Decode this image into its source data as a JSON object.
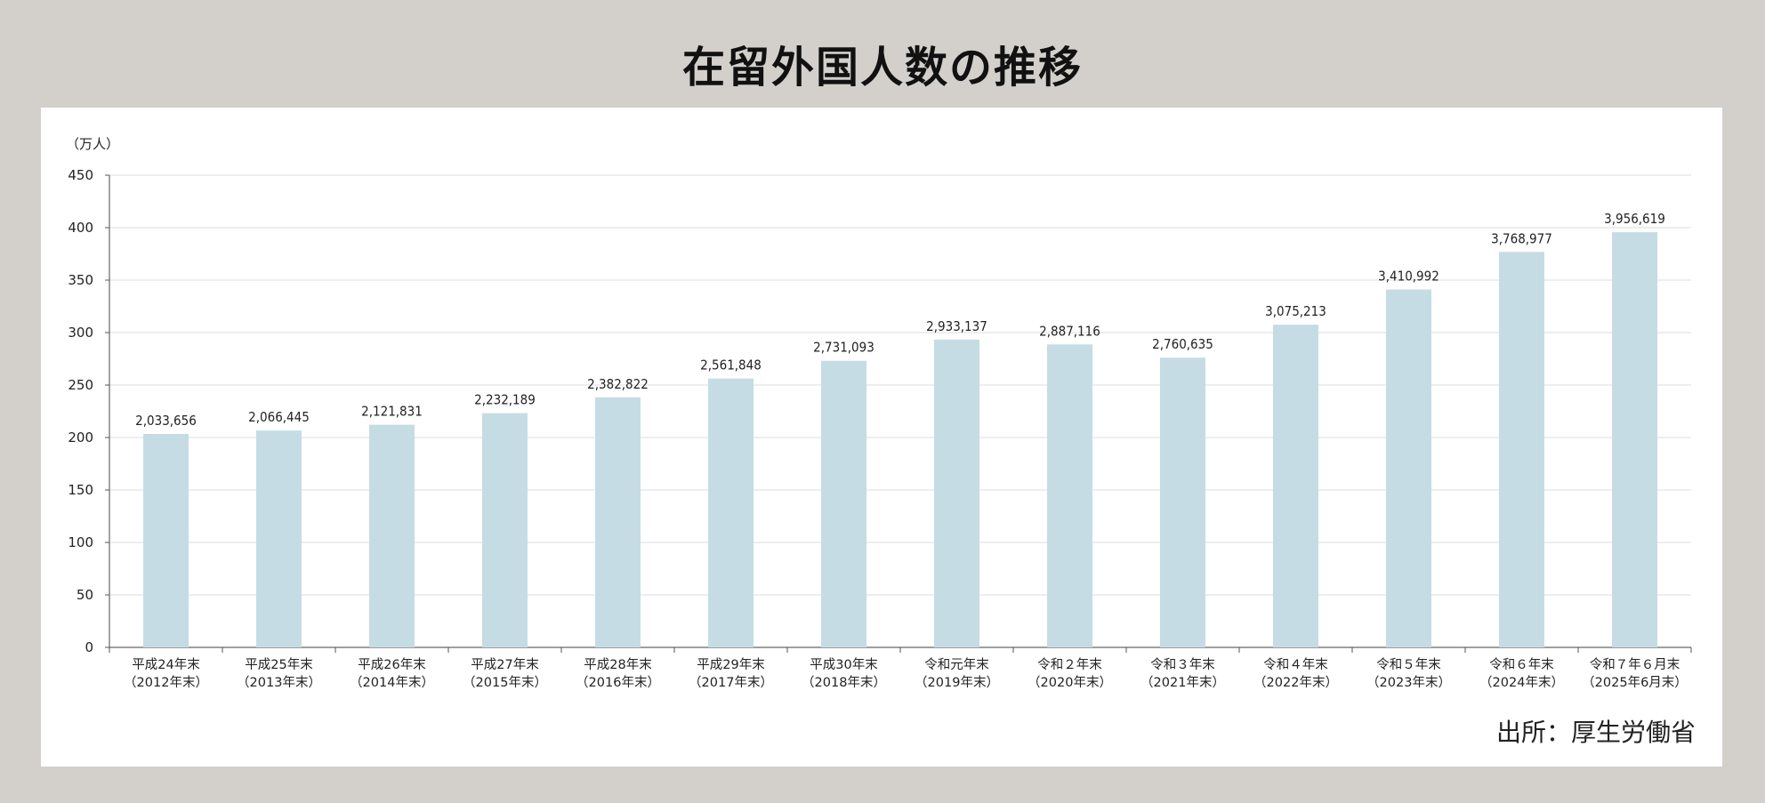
{
  "title": "在留外国人数の推移",
  "source": "出所：厚生労働省",
  "chart_data": {
    "type": "bar",
    "title": "在留外国人数の推移",
    "ylabel": "（万人）",
    "ylim": [
      0,
      450
    ],
    "yticks": [
      0,
      50,
      100,
      150,
      200,
      250,
      300,
      350,
      400,
      450
    ],
    "grid": true,
    "bar_color": "#c5dce4",
    "categories": [
      [
        "平成24年末",
        "（2012年末）"
      ],
      [
        "平成25年末",
        "（2013年末）"
      ],
      [
        "平成26年末",
        "（2014年末）"
      ],
      [
        "平成27年末",
        "（2015年末）"
      ],
      [
        "平成28年末",
        "（2016年末）"
      ],
      [
        "平成29年末",
        "（2017年末）"
      ],
      [
        "平成30年末",
        "（2018年末）"
      ],
      [
        "令和元年末",
        "（2019年末）"
      ],
      [
        "令和２年末",
        "（2020年末）"
      ],
      [
        "令和３年末",
        "（2021年末）"
      ],
      [
        "令和４年末",
        "（2022年末）"
      ],
      [
        "令和５年末",
        "（2023年末）"
      ],
      [
        "令和６年末",
        "（2024年末）"
      ],
      [
        "令和７年６月末",
        "（2025年6月末）"
      ]
    ],
    "values": [
      203.3656,
      206.6445,
      212.1831,
      223.2189,
      238.2822,
      256.1848,
      273.1093,
      293.3137,
      288.7116,
      276.0635,
      307.5213,
      341.0992,
      376.8977,
      395.6619
    ],
    "data_labels": [
      "2,033,656",
      "2,066,445",
      "2,121,831",
      "2,232,189",
      "2,382,822",
      "2,561,848",
      "2,731,093",
      "2,933,137",
      "2,887,116",
      "2,760,635",
      "3,075,213",
      "3,410,992",
      "3,768,977",
      "3,956,619"
    ]
  }
}
